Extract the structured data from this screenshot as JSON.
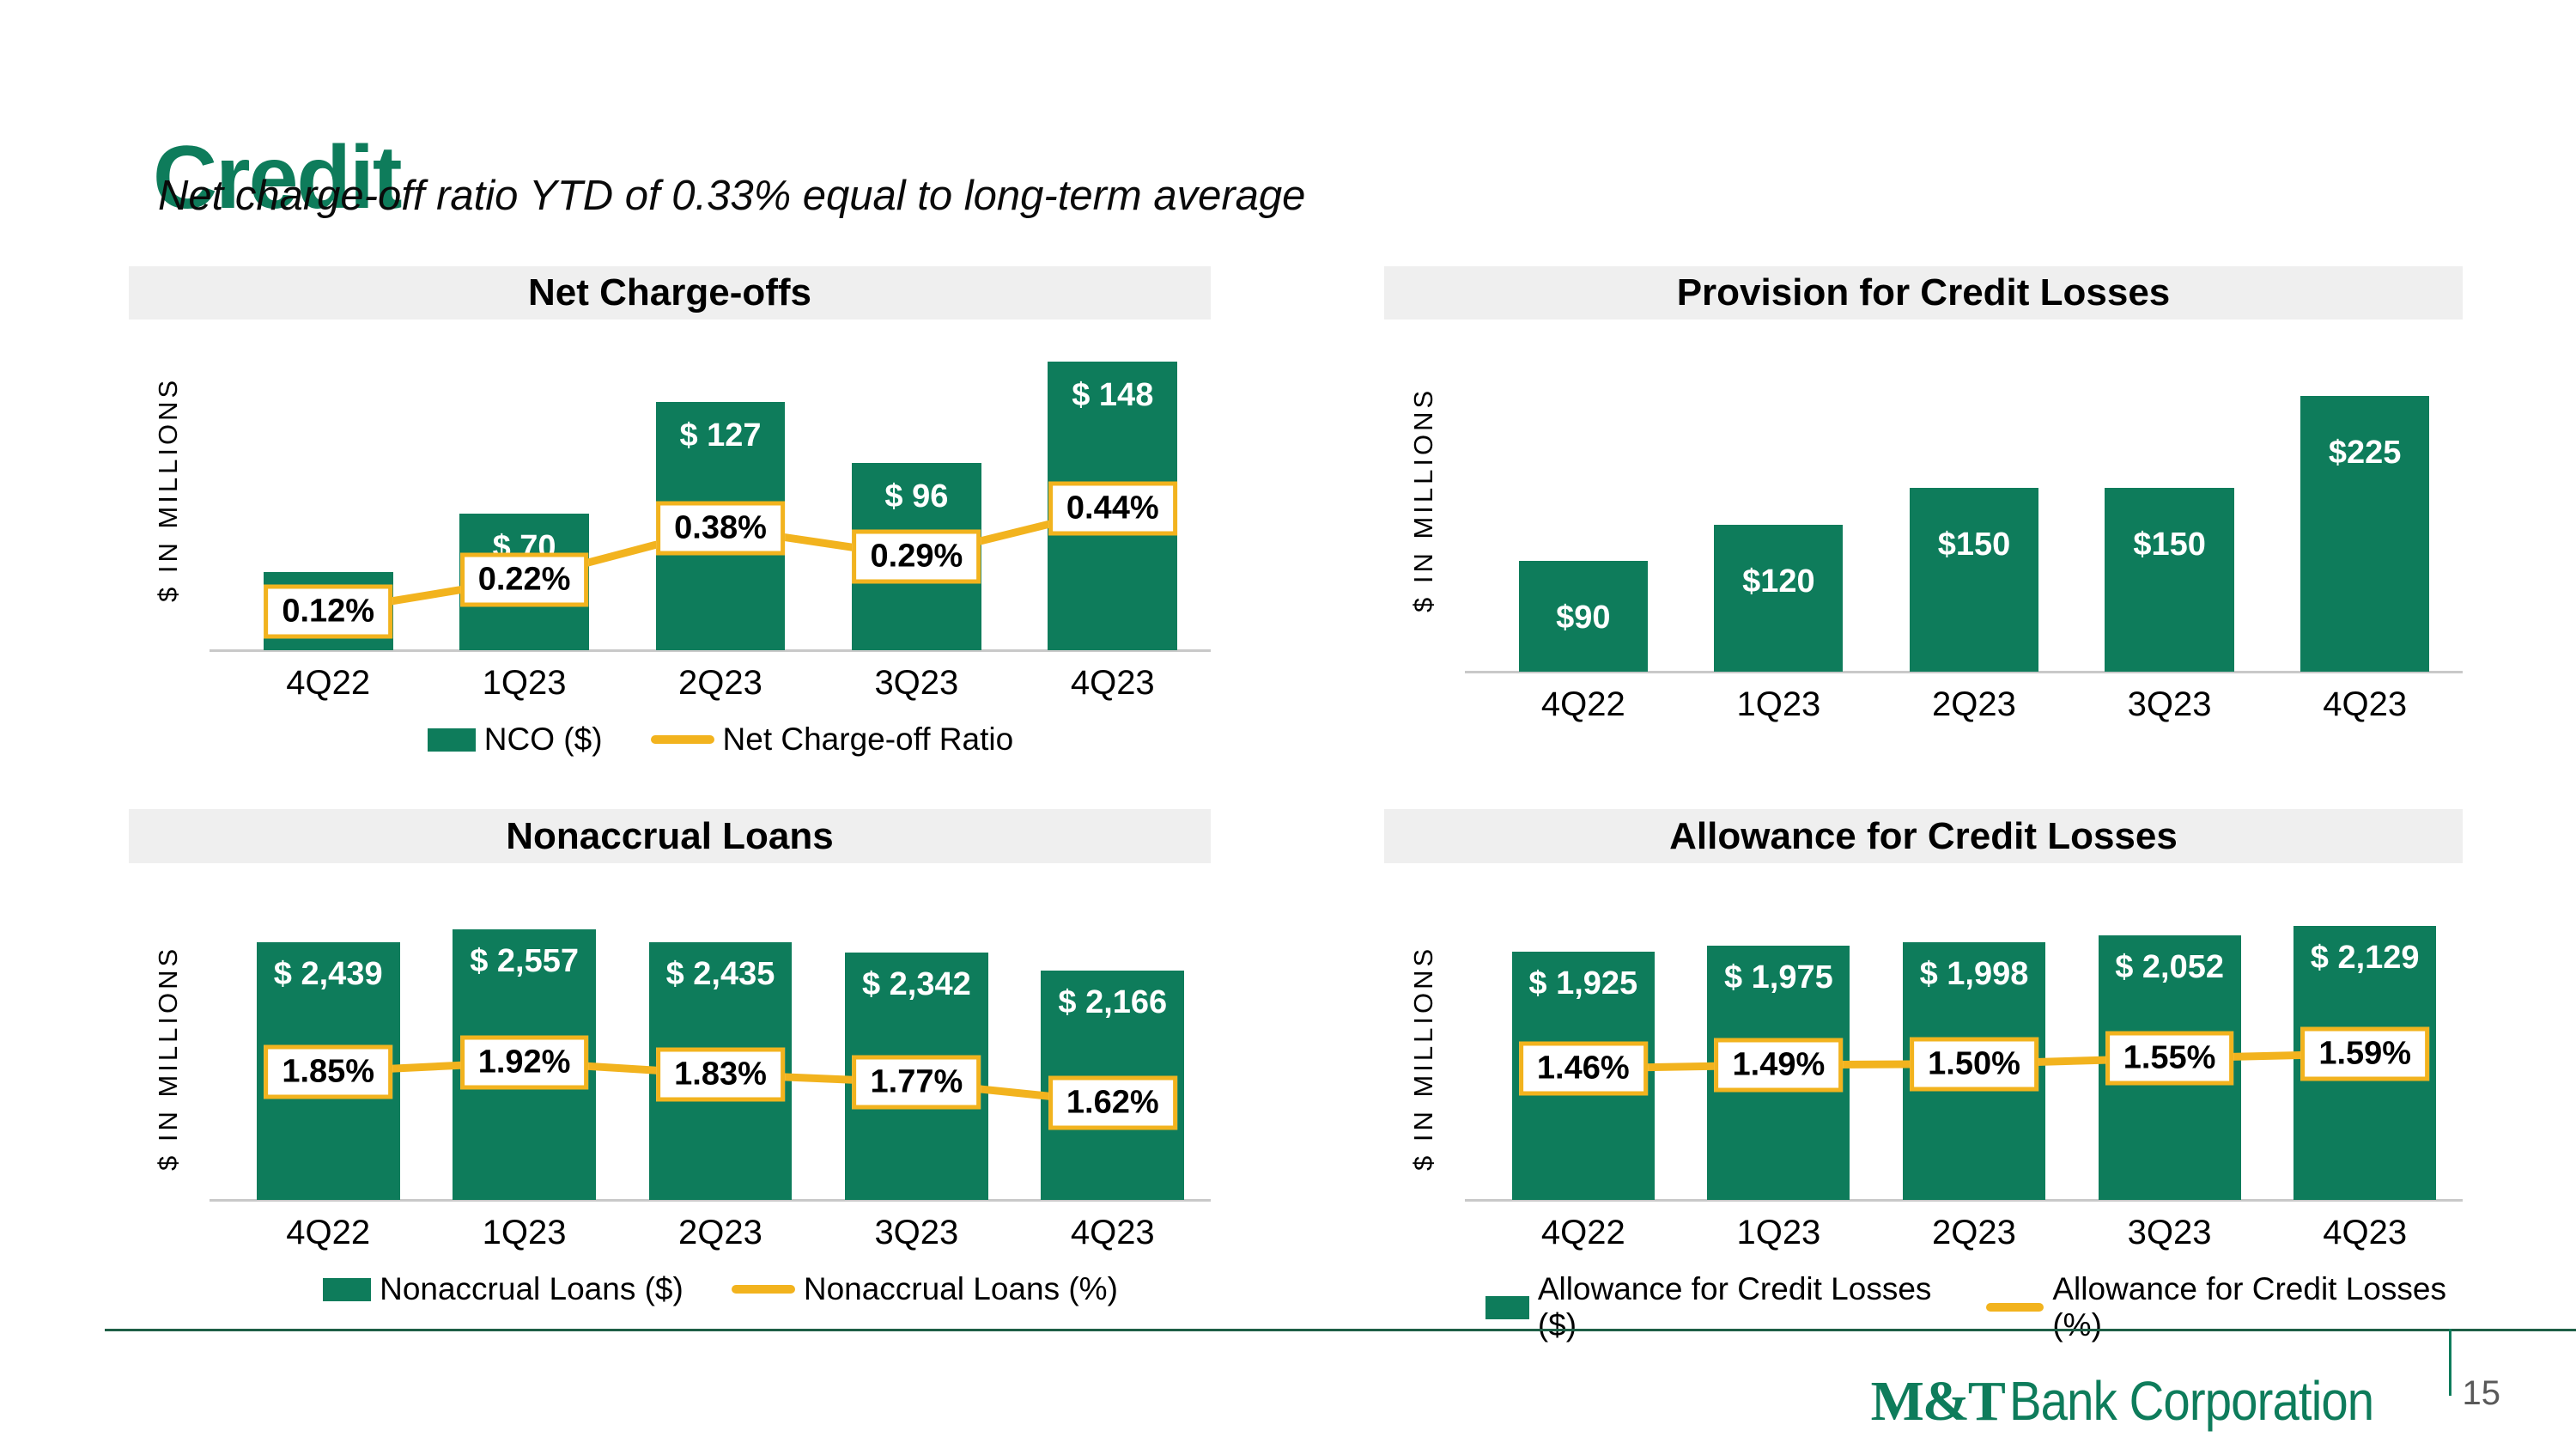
{
  "slide": {
    "title": "Credit",
    "subtitle": "Net charge-off ratio YTD of 0.33% equal to long-term average",
    "footer": {
      "logo_mt": "M&T",
      "logo_rest": "Bank Corporation",
      "page_number": "15"
    }
  },
  "colors": {
    "green": "#0E7C5B",
    "yellow": "#F2B31E",
    "header_bg": "#EFEFEF",
    "axis_gray": "#C9C9C9",
    "footer_line_green": "#1E5F46",
    "page_number_gray": "#595959"
  },
  "chart_data": [
    {
      "id": "net-charge-offs",
      "type": "bar+line",
      "title": "Net Charge-offs",
      "ylabel": "$ IN MILLIONS",
      "categories": [
        "4Q22",
        "1Q23",
        "2Q23",
        "3Q23",
        "4Q23"
      ],
      "series": [
        {
          "name": "NCO ($)",
          "type": "bar",
          "values": [
            40,
            70,
            127,
            96,
            148
          ],
          "labels": [
            "$ 40",
            "$ 70",
            "$ 127",
            "$ 96",
            "$ 148"
          ]
        },
        {
          "name": "Net Charge-off Ratio",
          "type": "line",
          "values": [
            0.12,
            0.22,
            0.38,
            0.29,
            0.44
          ],
          "labels": [
            "0.12%",
            "0.22%",
            "0.38%",
            "0.29%",
            "0.44%"
          ]
        }
      ],
      "legend": true,
      "ylim": [
        0,
        165
      ],
      "line_ylim": [
        0,
        1.0
      ],
      "grid": false,
      "legend_position": "bottom"
    },
    {
      "id": "provision-for-credit-losses",
      "type": "bar",
      "title": "Provision for Credit Losses",
      "ylabel": "$ IN MILLIONS",
      "categories": [
        "4Q22",
        "1Q23",
        "2Q23",
        "3Q23",
        "4Q23"
      ],
      "series": [
        {
          "name": "Provision for Credit Losses ($)",
          "type": "bar",
          "values": [
            90,
            120,
            150,
            150,
            225
          ],
          "labels": [
            "$90",
            "$120",
            "$150",
            "$150",
            "$225"
          ]
        }
      ],
      "legend": false,
      "ylim": [
        0,
        280
      ],
      "grid": false
    },
    {
      "id": "nonaccrual-loans",
      "type": "bar+line",
      "title": "Nonaccrual Loans",
      "ylabel": "$ IN MILLIONS",
      "categories": [
        "4Q22",
        "1Q23",
        "2Q23",
        "3Q23",
        "4Q23"
      ],
      "series": [
        {
          "name": "Nonaccrual Loans ($)",
          "type": "bar",
          "values": [
            2439,
            2557,
            2435,
            2342,
            2166
          ],
          "labels": [
            "$ 2,439",
            "$ 2,557",
            "$ 2,435",
            "$ 2,342",
            "$ 2,166"
          ]
        },
        {
          "name": "Nonaccrual Loans (%)",
          "type": "line",
          "values": [
            1.85,
            1.92,
            1.83,
            1.77,
            1.62
          ],
          "labels": [
            "1.85%",
            "1.92%",
            "1.83%",
            "1.77%",
            "1.62%"
          ]
        }
      ],
      "legend": true,
      "ylim": [
        0,
        2680
      ],
      "line_ylim": [
        0.9,
        3.0
      ],
      "grid": false,
      "legend_position": "bottom"
    },
    {
      "id": "allowance-for-credit-losses",
      "type": "bar+line",
      "title": "Allowance for Credit Losses",
      "ylabel": "$ IN MILLIONS",
      "categories": [
        "4Q22",
        "1Q23",
        "2Q23",
        "3Q23",
        "4Q23"
      ],
      "series": [
        {
          "name": "Allowance for Credit Losses ($)",
          "type": "bar",
          "values": [
            1925,
            1975,
            1998,
            2052,
            2129
          ],
          "labels": [
            "$ 1,925",
            "$ 1,975",
            "$ 1,998",
            "$ 2,052",
            "$ 2,129"
          ]
        },
        {
          "name": "Allowance for Credit Losses (%)",
          "type": "line",
          "values": [
            1.46,
            1.49,
            1.5,
            1.55,
            1.59
          ],
          "labels": [
            "1.46%",
            "1.49%",
            "1.50%",
            "1.55%",
            "1.59%"
          ]
        }
      ],
      "legend": true,
      "ylim": [
        0,
        2200
      ],
      "line_ylim": [
        0.3,
        2.8
      ],
      "grid": false,
      "legend_position": "bottom"
    }
  ]
}
